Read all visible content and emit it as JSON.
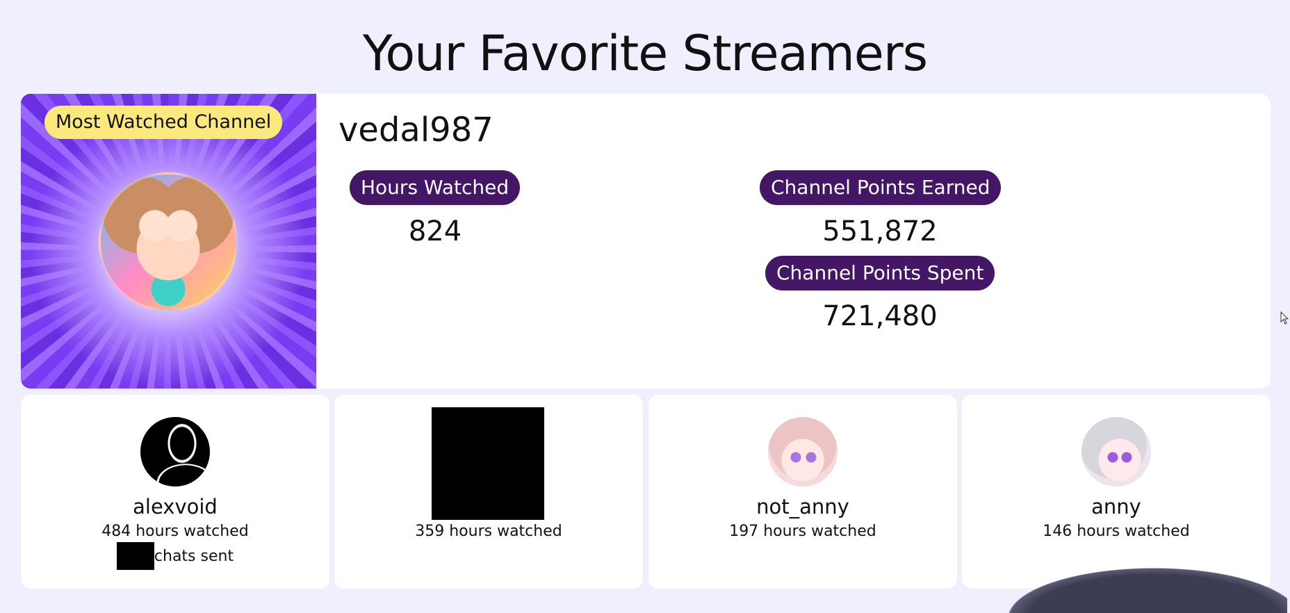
{
  "page": {
    "title": "Your Favorite Streamers"
  },
  "top_channel": {
    "badge": "Most Watched Channel",
    "name": "vedal987",
    "stats": {
      "hours_label": "Hours Watched",
      "hours_value": "824",
      "points_earned_label": "Channel Points Earned",
      "points_earned_value": "551,872",
      "points_spent_label": "Channel Points Spent",
      "points_spent_value": "721,480"
    }
  },
  "streamers": [
    {
      "name": "alexvoid",
      "hours": "484 hours watched",
      "chats": "chats sent"
    },
    {
      "name": "",
      "hours": "359 hours watched"
    },
    {
      "name": "not_anny",
      "hours": "197 hours watched"
    },
    {
      "name": "anny",
      "hours": "146 hours watched"
    }
  ],
  "icons": {
    "cursor": "mouse-pointer-icon"
  },
  "colors": {
    "background": "#efeffe",
    "pill": "#431666",
    "badge": "#fbe97d",
    "banner": "#7a3cf0"
  }
}
